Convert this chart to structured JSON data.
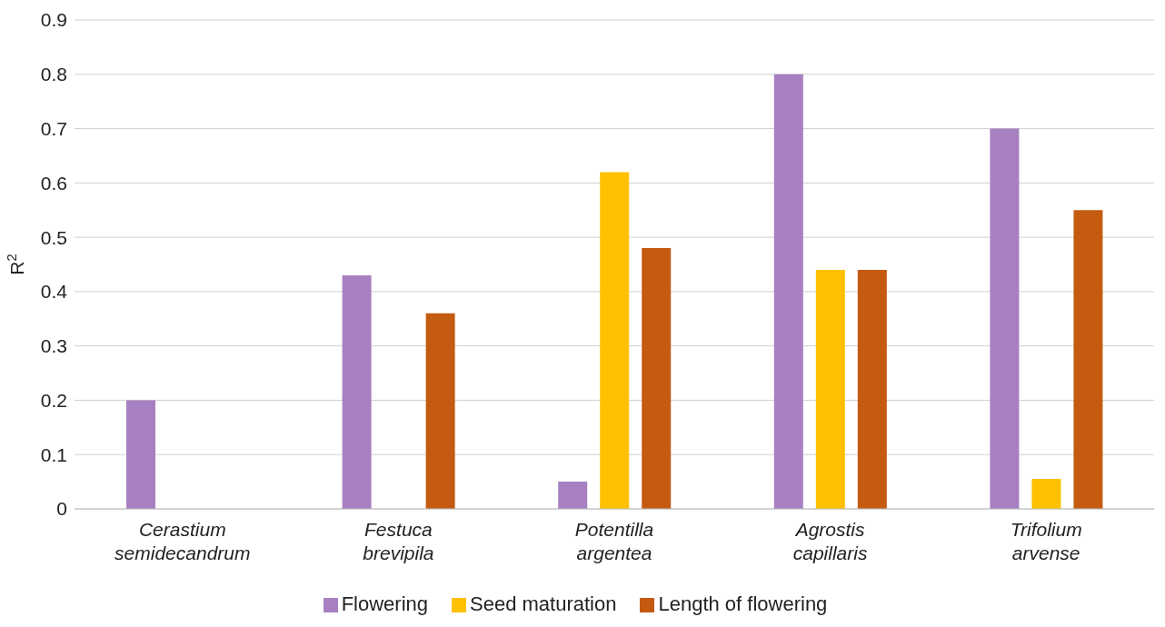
{
  "chart_data": {
    "type": "bar",
    "ylabel": "R$^{2}$",
    "categories": [
      "Cerastium semidecandrum",
      "Festuca brevipila",
      "Potentilla argentea",
      "Agrostis capillaris",
      "Trifolium arvense"
    ],
    "series": [
      {
        "name": "Flowering",
        "color": "#a680c0",
        "values": [
          0.2,
          0.43,
          0.05,
          0.8,
          0.7
        ]
      },
      {
        "name": "Seed maturation",
        "color": "#ffc000",
        "values": [
          null,
          null,
          0.62,
          0.44,
          0.055
        ]
      },
      {
        "name": "Length of flowering",
        "color": "#c55a11",
        "values": [
          null,
          0.36,
          0.48,
          0.44,
          0.55
        ]
      }
    ],
    "ylim": [
      0,
      0.9
    ],
    "yticks": [
      0,
      0.1,
      0.2,
      0.3,
      0.4,
      0.5,
      0.6,
      0.7,
      0.8,
      0.9
    ],
    "grid": "y",
    "legend": "bottom"
  }
}
